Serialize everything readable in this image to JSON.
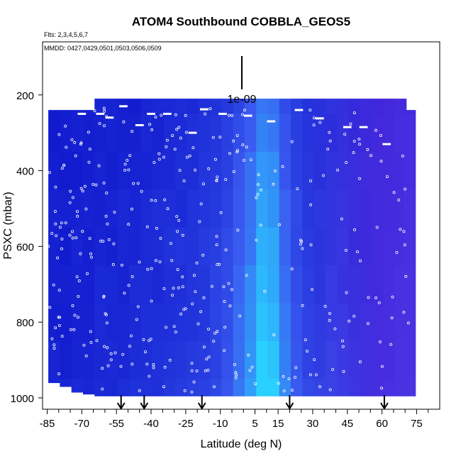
{
  "chart_data": {
    "type": "heatmap",
    "title": "ATOM4 Southbound COBBLA_GEOS5",
    "flights_text": "Flts: 2,3,4,5,6,7",
    "dates_text": "MMDD: 0427,0429,0501,0503,0506,0509",
    "scale_label": "1e-09",
    "xlabel": "Latitude (deg N)",
    "ylabel": "PSXC (mbar)",
    "xlim": [
      -87,
      85
    ],
    "ylim": [
      1030,
      60
    ],
    "y_reversed": true,
    "xticks": [
      -85,
      -70,
      -55,
      -40,
      -25,
      -10,
      5,
      15,
      30,
      45,
      60,
      75
    ],
    "xtick_labels": [
      "-85",
      "-70",
      "-55",
      "-40",
      "-25",
      "-10",
      "5",
      "15",
      "30",
      "45",
      "60",
      "75"
    ],
    "yticks": [
      200,
      400,
      600,
      800,
      1000
    ],
    "ytick_labels": [
      "200",
      "400",
      "600",
      "800",
      "1000"
    ],
    "colors": {
      "low": "#0a10c8",
      "mid": "#3a5af0",
      "high": "#2ad0ff",
      "north": "#5a28e0",
      "outline": "#000000"
    },
    "field_columns": [
      {
        "lat": -82,
        "top": 240,
        "bottom": 960,
        "value": 0.1
      },
      {
        "lat": -77,
        "top": 240,
        "bottom": 970,
        "value": 0.1
      },
      {
        "lat": -72,
        "top": 240,
        "bottom": 985,
        "value": 0.12
      },
      {
        "lat": -67,
        "top": 240,
        "bottom": 990,
        "value": 0.12
      },
      {
        "lat": -62,
        "top": 210,
        "bottom": 995,
        "value": 0.14
      },
      {
        "lat": -57,
        "top": 210,
        "bottom": 995,
        "value": 0.14
      },
      {
        "lat": -52,
        "top": 210,
        "bottom": 995,
        "value": 0.15
      },
      {
        "lat": -47,
        "top": 210,
        "bottom": 995,
        "value": 0.16
      },
      {
        "lat": -42,
        "top": 210,
        "bottom": 995,
        "value": 0.18
      },
      {
        "lat": -37,
        "top": 210,
        "bottom": 995,
        "value": 0.18
      },
      {
        "lat": -32,
        "top": 210,
        "bottom": 995,
        "value": 0.2
      },
      {
        "lat": -27,
        "top": 210,
        "bottom": 995,
        "value": 0.22
      },
      {
        "lat": -22,
        "top": 210,
        "bottom": 995,
        "value": 0.24
      },
      {
        "lat": -17,
        "top": 210,
        "bottom": 995,
        "value": 0.26
      },
      {
        "lat": -12,
        "top": 210,
        "bottom": 995,
        "value": 0.3
      },
      {
        "lat": -7,
        "top": 210,
        "bottom": 995,
        "value": 0.38
      },
      {
        "lat": -2,
        "top": 210,
        "bottom": 995,
        "value": 0.5
      },
      {
        "lat": 3,
        "top": 210,
        "bottom": 995,
        "value": 0.65
      },
      {
        "lat": 8,
        "top": 210,
        "bottom": 995,
        "value": 0.85
      },
      {
        "lat": 13,
        "top": 210,
        "bottom": 995,
        "value": 0.8
      },
      {
        "lat": 18,
        "top": 210,
        "bottom": 995,
        "value": 0.55
      },
      {
        "lat": 23,
        "top": 210,
        "bottom": 995,
        "value": 0.4
      },
      {
        "lat": 28,
        "top": 210,
        "bottom": 995,
        "value": 0.3
      },
      {
        "lat": 33,
        "top": 210,
        "bottom": 995,
        "value": 0.28
      },
      {
        "lat": 38,
        "top": 210,
        "bottom": 995,
        "value": 0.3
      },
      {
        "lat": 43,
        "top": 210,
        "bottom": 995,
        "value": 0.28
      },
      {
        "lat": 48,
        "top": 210,
        "bottom": 995,
        "value": 0.24
      },
      {
        "lat": 53,
        "top": 210,
        "bottom": 995,
        "value": 0.22
      },
      {
        "lat": 58,
        "top": 210,
        "bottom": 995,
        "value": 0.2
      },
      {
        "lat": 63,
        "top": 210,
        "bottom": 995,
        "value": 0.24
      },
      {
        "lat": 68,
        "top": 210,
        "bottom": 995,
        "value": 0.28
      },
      {
        "lat": 72,
        "top": 240,
        "bottom": 995,
        "value": 0.3
      }
    ],
    "arrow_lats": [
      -53,
      -43,
      -18,
      20,
      61
    ]
  }
}
